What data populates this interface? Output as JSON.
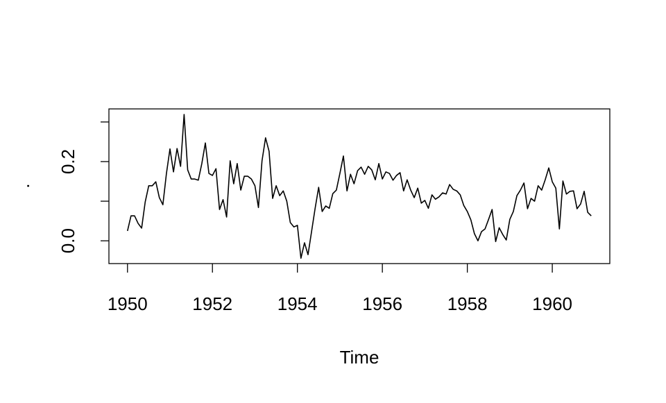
{
  "chart_data": {
    "type": "line",
    "xlabel": "Time",
    "ylabel": ".",
    "color": "#000000",
    "x": [
      1950,
      1950.083,
      1950.167,
      1950.25,
      1950.333,
      1950.417,
      1950.5,
      1950.583,
      1950.667,
      1950.75,
      1950.833,
      1950.917,
      1951,
      1951.083,
      1951.167,
      1951.25,
      1951.333,
      1951.417,
      1951.5,
      1951.583,
      1951.667,
      1951.75,
      1951.833,
      1951.917,
      1952,
      1952.083,
      1952.167,
      1952.25,
      1952.333,
      1952.417,
      1952.5,
      1952.583,
      1952.667,
      1952.75,
      1952.833,
      1952.917,
      1953,
      1953.083,
      1953.167,
      1953.25,
      1953.333,
      1953.417,
      1953.5,
      1953.583,
      1953.667,
      1953.75,
      1953.833,
      1953.917,
      1954,
      1954.083,
      1954.167,
      1954.25,
      1954.333,
      1954.417,
      1954.5,
      1954.583,
      1954.667,
      1954.75,
      1954.833,
      1954.917,
      1955,
      1955.083,
      1955.167,
      1955.25,
      1955.333,
      1955.417,
      1955.5,
      1955.583,
      1955.667,
      1955.75,
      1955.833,
      1955.917,
      1956,
      1956.083,
      1956.167,
      1956.25,
      1956.333,
      1956.417,
      1956.5,
      1956.583,
      1956.667,
      1956.75,
      1956.833,
      1956.917,
      1957,
      1957.083,
      1957.167,
      1957.25,
      1957.333,
      1957.417,
      1957.5,
      1957.583,
      1957.667,
      1957.75,
      1957.833,
      1957.917,
      1958,
      1958.083,
      1958.167,
      1958.25,
      1958.333,
      1958.417,
      1958.5,
      1958.583,
      1958.667,
      1958.75,
      1958.833,
      1958.917,
      1959,
      1959.083,
      1959.167,
      1959.25,
      1959.333,
      1959.417,
      1959.5,
      1959.583,
      1959.667,
      1959.75,
      1959.833,
      1959.917,
      1960,
      1960.083,
      1960.167,
      1960.25,
      1960.333,
      1960.417,
      1960.5,
      1960.583,
      1960.667,
      1960.75,
      1960.833,
      1960.917
    ],
    "values": [
      0.025,
      0.063,
      0.063,
      0.044,
      0.032,
      0.098,
      0.139,
      0.139,
      0.149,
      0.109,
      0.091,
      0.17,
      0.232,
      0.174,
      0.233,
      0.188,
      0.319,
      0.179,
      0.156,
      0.156,
      0.153,
      0.195,
      0.247,
      0.17,
      0.165,
      0.182,
      0.079,
      0.104,
      0.06,
      0.202,
      0.144,
      0.195,
      0.128,
      0.163,
      0.163,
      0.156,
      0.139,
      0.084,
      0.202,
      0.26,
      0.226,
      0.107,
      0.139,
      0.114,
      0.126,
      0.1,
      0.046,
      0.035,
      0.039,
      -0.044,
      -0.005,
      -0.035,
      0.023,
      0.082,
      0.135,
      0.074,
      0.088,
      0.082,
      0.119,
      0.128,
      0.17,
      0.214,
      0.126,
      0.168,
      0.144,
      0.177,
      0.186,
      0.168,
      0.188,
      0.179,
      0.154,
      0.195,
      0.156,
      0.174,
      0.17,
      0.153,
      0.165,
      0.172,
      0.126,
      0.154,
      0.128,
      0.109,
      0.133,
      0.095,
      0.102,
      0.082,
      0.116,
      0.105,
      0.111,
      0.121,
      0.118,
      0.142,
      0.13,
      0.126,
      0.116,
      0.089,
      0.074,
      0.053,
      0.018,
      0.0,
      0.023,
      0.03,
      0.054,
      0.079,
      -0.002,
      0.033,
      0.016,
      0.002,
      0.054,
      0.074,
      0.114,
      0.128,
      0.146,
      0.081,
      0.107,
      0.1,
      0.139,
      0.128,
      0.154,
      0.184,
      0.149,
      0.133,
      0.03,
      0.151,
      0.118,
      0.125,
      0.126,
      0.081,
      0.093,
      0.125,
      0.072,
      0.063
    ],
    "xlim": [
      1949.563,
      1961.354
    ],
    "ylim": [
      -0.0575,
      0.333
    ],
    "xticks": [
      1950,
      1952,
      1954,
      1956,
      1958,
      1960
    ],
    "yticks": [
      0,
      0.1,
      0.2,
      0.3
    ],
    "ylabels": [
      {
        "value": 0,
        "label": "0.0"
      },
      0.2
    ]
  }
}
